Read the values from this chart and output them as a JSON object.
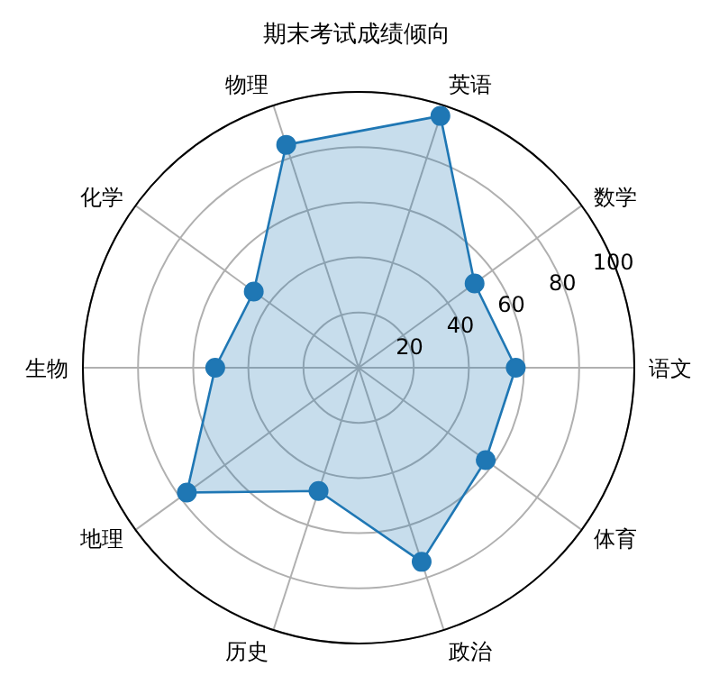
{
  "chart_data": {
    "type": "radar",
    "title": "期末考试成绩倾向",
    "categories": [
      "英语",
      "数学",
      "语文",
      "体育",
      "政治",
      "历史",
      "地理",
      "生物",
      "化学",
      "物理"
    ],
    "series": [
      {
        "color": "#1f77b4",
        "values": [
          96,
          52,
          57,
          57,
          74,
          47,
          77,
          52,
          47,
          85
        ]
      }
    ],
    "ylim": [
      0,
      100
    ],
    "yticks": [
      20,
      40,
      60,
      80,
      100
    ],
    "grid": true,
    "marker": "circle"
  }
}
